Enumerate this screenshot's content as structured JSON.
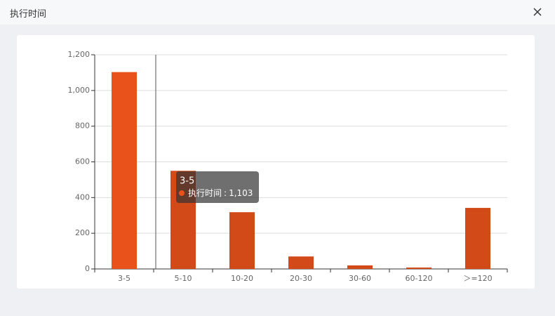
{
  "dialog": {
    "title": "执行时间"
  },
  "chart_data": {
    "type": "bar",
    "categories": [
      "3-5",
      "5-10",
      "10-20",
      "20-30",
      "30-60",
      "60-120",
      "＞=120"
    ],
    "series": [
      {
        "name": "执行时间",
        "color": "#d24a18",
        "values": [
          1103,
          550,
          318,
          70,
          20,
          8,
          342
        ]
      }
    ],
    "highlight": {
      "index": 0,
      "color": "#e9521a"
    },
    "ylim": [
      0,
      1200
    ],
    "yticks": [
      0,
      200,
      400,
      600,
      800,
      {
        "value": 1000,
        "label": "1,000"
      },
      {
        "value": 1200,
        "label": "1,200"
      }
    ],
    "grid": true,
    "tooltip": {
      "category": "3-5",
      "name": "执行时间",
      "separator": ":",
      "value": 1103,
      "value_label": "1,103"
    }
  }
}
